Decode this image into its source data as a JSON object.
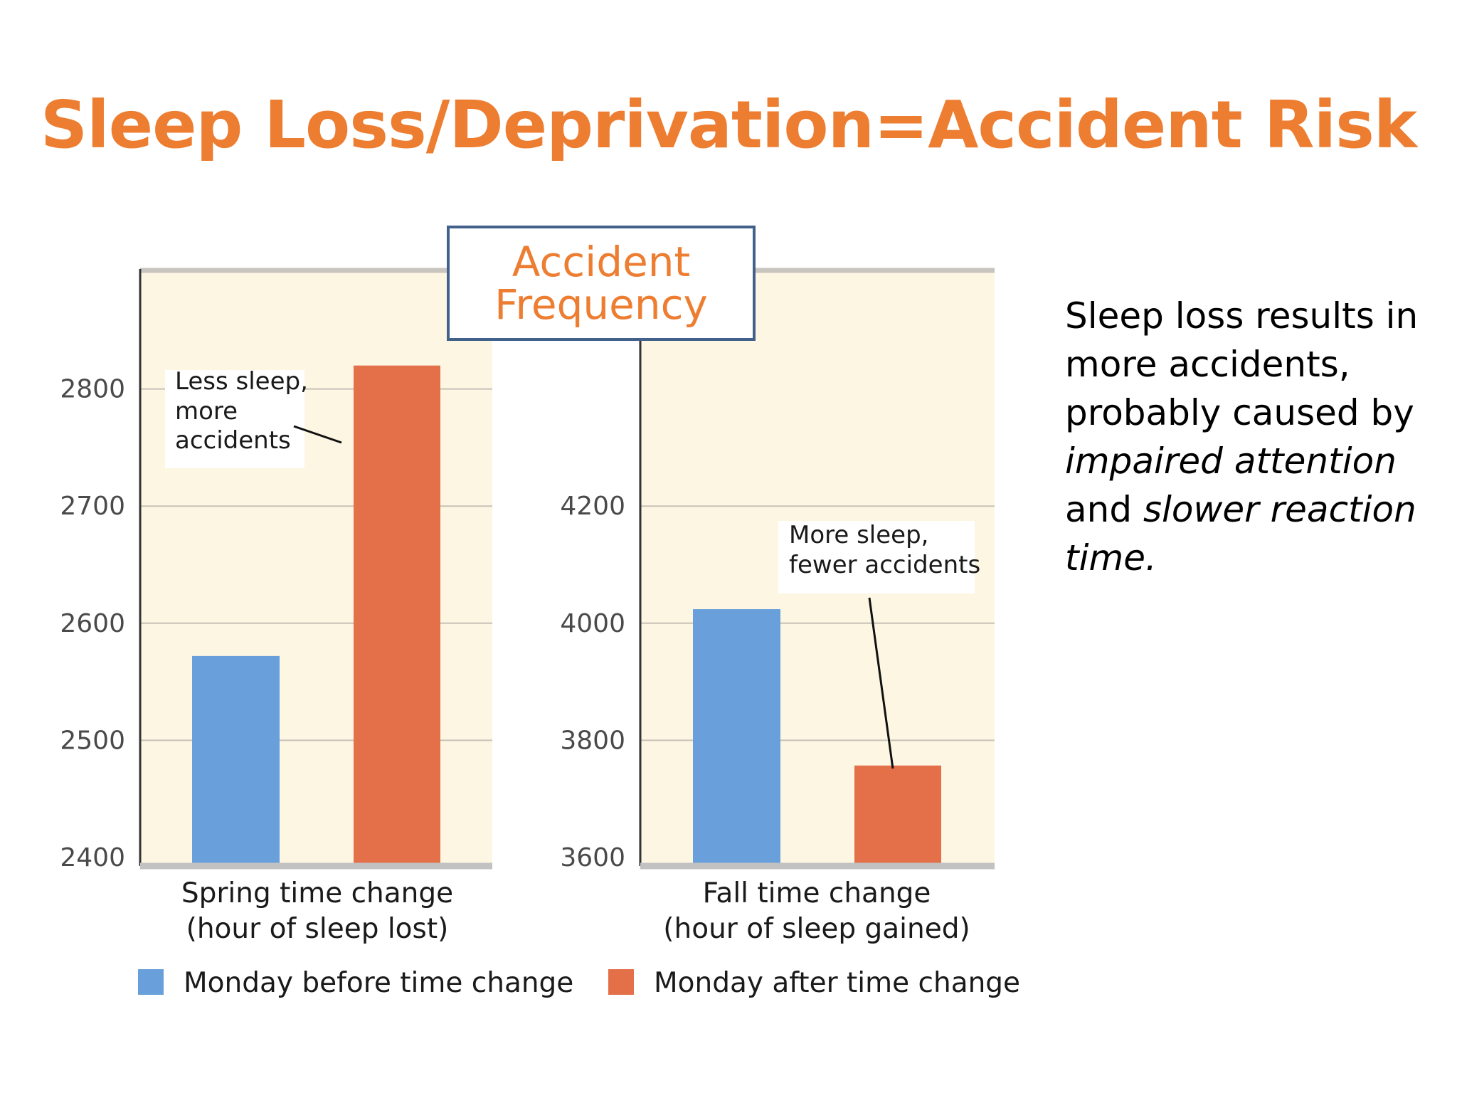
{
  "slide": {
    "title": "Sleep Loss/Deprivation=Accident Risk",
    "callout": {
      "line1": "Accident",
      "line2": "Frequency"
    },
    "side_text": {
      "part1": "Sleep loss results in more accidents, probably caused by ",
      "em1": "impaired attention",
      "part2": " and ",
      "em2": "slower reaction time."
    }
  },
  "colors": {
    "accent": "#ED7D31",
    "plot_bg": "#FDF6E3",
    "blue_bar": "#69A0DC",
    "orange_bar": "#E4704A",
    "callout_border": "#41608A"
  },
  "chart_data": [
    {
      "type": "bar",
      "xlabel": [
        "Spring time change",
        "(hour of sleep lost)"
      ],
      "ylim": [
        2400,
        2900
      ],
      "yticks": [
        2400,
        2500,
        2600,
        2700,
        2800
      ],
      "series": [
        {
          "name": "Monday before time change",
          "values": [
            2572
          ]
        },
        {
          "name": "Monday after time change",
          "values": [
            2820
          ]
        }
      ],
      "annotation": [
        "Less sleep,",
        "more",
        "accidents"
      ],
      "grid": true
    },
    {
      "type": "bar",
      "xlabel": [
        "Fall time change",
        "(hour of sleep gained)"
      ],
      "ylim": [
        3600,
        4600
      ],
      "yticks": [
        3600,
        3800,
        4000,
        4200
      ],
      "series": [
        {
          "name": "Monday before time change",
          "values": [
            4024
          ]
        },
        {
          "name": "Monday after time change",
          "values": [
            3757
          ]
        }
      ],
      "annotation": [
        "More sleep,",
        "fewer accidents"
      ],
      "grid": true
    }
  ],
  "legend": {
    "placement": "bottom",
    "items": [
      {
        "label": "Monday before time change",
        "color": "#69A0DC"
      },
      {
        "label": "Monday after time change",
        "color": "#E4704A"
      }
    ]
  }
}
